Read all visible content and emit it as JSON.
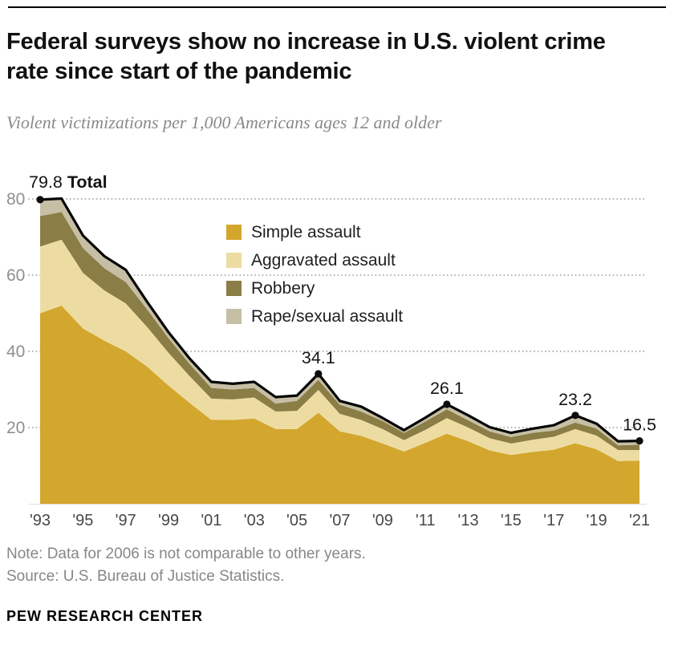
{
  "header": {
    "title": "Federal surveys show no increase in U.S. violent crime rate since start of the pandemic",
    "subtitle": "Violent victimizations per 1,000 Americans ages 12 and older"
  },
  "footer": {
    "note": "Note: Data for 2006 is not comparable to other years.",
    "source": "Source: U.S. Bureau of Justice Statistics.",
    "brand": "PEW RESEARCH CENTER"
  },
  "chart_data": {
    "type": "area",
    "stacked": true,
    "grid": "horizontal-dotted",
    "legend_position": "inside-top-center",
    "ylim": [
      0,
      84
    ],
    "y_ticks": [
      20,
      40,
      60,
      80
    ],
    "x": [
      1993,
      1994,
      1995,
      1996,
      1997,
      1998,
      1999,
      2000,
      2001,
      2002,
      2003,
      2004,
      2005,
      2006,
      2007,
      2008,
      2009,
      2010,
      2011,
      2012,
      2013,
      2014,
      2015,
      2016,
      2017,
      2018,
      2019,
      2020,
      2021
    ],
    "x_tick_labels": [
      "'93",
      "'95",
      "'97",
      "'99",
      "'01",
      "'03",
      "'05",
      "'07",
      "'09",
      "'11",
      "'13",
      "'15",
      "'17",
      "'19",
      "'21"
    ],
    "series": [
      {
        "name": "Simple assault",
        "color": "#d3a62d",
        "values": [
          50.0,
          52.0,
          46.0,
          42.8,
          40.0,
          36.0,
          31.0,
          26.4,
          22.0,
          22.0,
          22.4,
          19.6,
          19.6,
          23.9,
          19.0,
          17.8,
          15.8,
          13.7,
          16.0,
          18.4,
          16.4,
          14.0,
          12.8,
          13.6,
          14.2,
          15.9,
          14.3,
          11.2,
          11.3
        ]
      },
      {
        "name": "Aggravated assault",
        "color": "#eddca2",
        "values": [
          17.5,
          17.3,
          14.6,
          13.2,
          12.6,
          10.4,
          8.6,
          7.0,
          5.6,
          5.4,
          5.5,
          4.6,
          4.8,
          6.0,
          4.6,
          4.2,
          3.8,
          3.0,
          3.4,
          4.1,
          3.6,
          3.2,
          3.0,
          3.2,
          3.4,
          3.7,
          3.6,
          2.9,
          2.8
        ]
      },
      {
        "name": "Robbery",
        "color": "#8a7d45",
        "values": [
          8.0,
          7.3,
          6.5,
          5.8,
          5.6,
          4.6,
          3.8,
          3.2,
          2.8,
          2.6,
          2.5,
          2.1,
          2.6,
          2.6,
          2.4,
          2.2,
          2.1,
          1.9,
          2.2,
          2.3,
          1.9,
          1.8,
          1.7,
          1.8,
          1.6,
          1.7,
          1.8,
          1.2,
          1.4
        ]
      },
      {
        "name": "Rape/sexual assault",
        "color": "#c6bfa6",
        "values": [
          4.3,
          3.5,
          3.3,
          3.2,
          3.2,
          2.0,
          1.6,
          1.4,
          1.6,
          1.5,
          1.6,
          1.7,
          1.4,
          1.6,
          1.0,
          1.3,
          0.8,
          0.7,
          1.0,
          1.3,
          1.3,
          1.1,
          1.1,
          1.1,
          1.4,
          1.9,
          1.3,
          1.1,
          1.0
        ]
      }
    ],
    "total": {
      "name": "Total",
      "color": "#050505",
      "values": [
        79.8,
        80.1,
        70.4,
        65.0,
        61.4,
        53.0,
        45.0,
        38.0,
        32.0,
        31.5,
        32.0,
        28.0,
        28.4,
        34.1,
        27.0,
        25.5,
        22.5,
        19.3,
        22.6,
        26.1,
        23.2,
        20.1,
        18.6,
        19.7,
        20.6,
        23.2,
        21.0,
        16.4,
        16.5
      ]
    },
    "annotations": [
      {
        "x": 1993,
        "y": 79.8,
        "text": "79.8",
        "bold_text": " Total",
        "anchor": "start"
      },
      {
        "x": 2006,
        "y": 34.1,
        "text": "34.1",
        "anchor": "middle"
      },
      {
        "x": 2012,
        "y": 26.1,
        "text": "26.1",
        "anchor": "middle"
      },
      {
        "x": 2018,
        "y": 23.2,
        "text": "23.2",
        "anchor": "middle"
      },
      {
        "x": 2021,
        "y": 16.5,
        "text": "16.5",
        "anchor": "middle"
      }
    ],
    "grid_color": "#9e9e9e",
    "axis_label_color": "#8f8f8f",
    "x_label_color": "#474747"
  }
}
